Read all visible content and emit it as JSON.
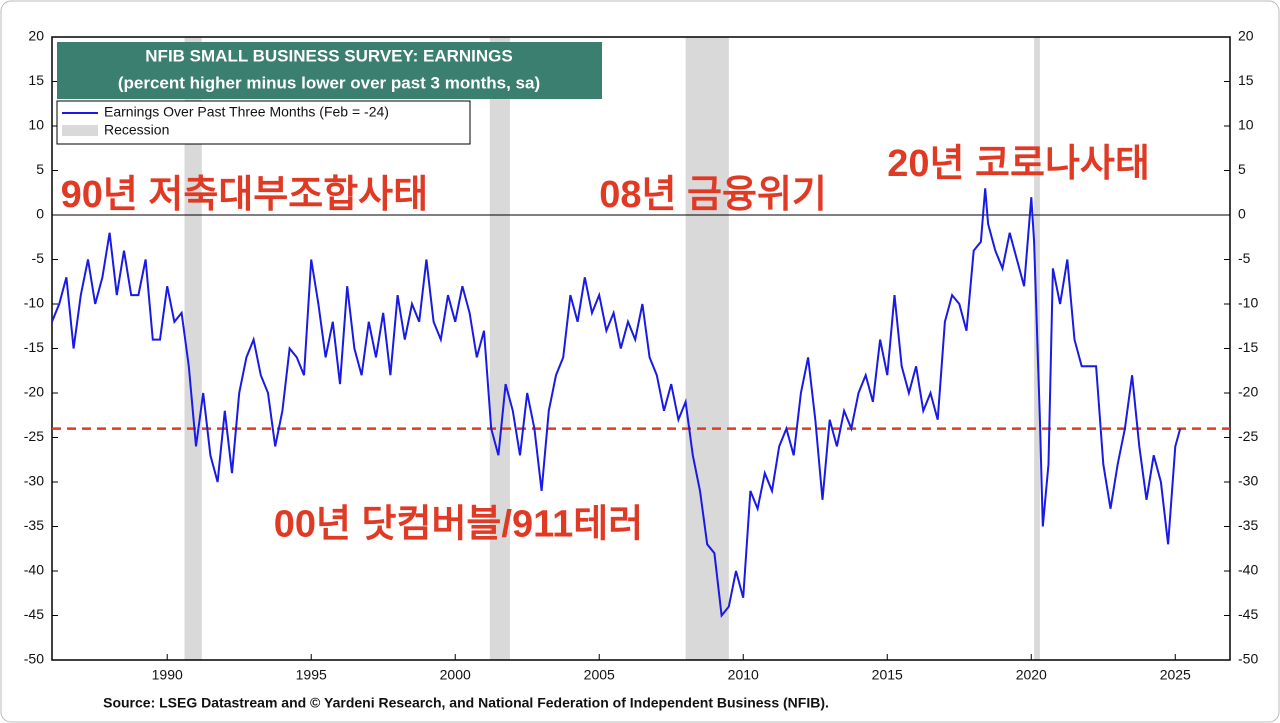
{
  "chart_data": {
    "type": "line",
    "title": "NFIB SMALL BUSINESS SURVEY: EARNINGS",
    "subtitle": "(percent higher minus lower over past 3 months, sa)",
    "source": "Source: LSEG Datastream and © Yardeni Research, and National Federation of Independent Business (NFIB).",
    "x": [
      1986.0,
      1986.25,
      1986.5,
      1986.75,
      1987.0,
      1987.25,
      1987.5,
      1987.75,
      1988.0,
      1988.25,
      1988.5,
      1988.75,
      1989.0,
      1989.25,
      1989.5,
      1989.75,
      1990.0,
      1990.25,
      1990.5,
      1990.75,
      1991.0,
      1991.25,
      1991.5,
      1991.75,
      1992.0,
      1992.25,
      1992.5,
      1992.75,
      1993.0,
      1993.25,
      1993.5,
      1993.75,
      1994.0,
      1994.25,
      1994.5,
      1994.75,
      1995.0,
      1995.25,
      1995.5,
      1995.75,
      1996.0,
      1996.25,
      1996.5,
      1996.75,
      1997.0,
      1997.25,
      1997.5,
      1997.75,
      1998.0,
      1998.25,
      1998.5,
      1998.75,
      1999.0,
      1999.25,
      1999.5,
      1999.75,
      2000.0,
      2000.25,
      2000.5,
      2000.75,
      2001.0,
      2001.25,
      2001.5,
      2001.75,
      2002.0,
      2002.25,
      2002.5,
      2002.75,
      2003.0,
      2003.25,
      2003.5,
      2003.75,
      2004.0,
      2004.25,
      2004.5,
      2004.75,
      2005.0,
      2005.25,
      2005.5,
      2005.75,
      2006.0,
      2006.25,
      2006.5,
      2006.75,
      2007.0,
      2007.25,
      2007.5,
      2007.75,
      2008.0,
      2008.25,
      2008.5,
      2008.75,
      2009.0,
      2009.25,
      2009.5,
      2009.75,
      2010.0,
      2010.25,
      2010.5,
      2010.75,
      2011.0,
      2011.25,
      2011.5,
      2011.75,
      2012.0,
      2012.25,
      2012.5,
      2012.75,
      2013.0,
      2013.25,
      2013.5,
      2013.75,
      2014.0,
      2014.25,
      2014.5,
      2014.75,
      2015.0,
      2015.25,
      2015.5,
      2015.75,
      2016.0,
      2016.25,
      2016.5,
      2016.75,
      2017.0,
      2017.25,
      2017.5,
      2017.75,
      2018.0,
      2018.25,
      2018.4,
      2018.5,
      2018.75,
      2019.0,
      2019.25,
      2019.5,
      2019.75,
      2020.0,
      2020.1,
      2020.3,
      2020.4,
      2020.6,
      2020.75,
      2021.0,
      2021.25,
      2021.5,
      2021.75,
      2022.0,
      2022.25,
      2022.5,
      2022.75,
      2023.0,
      2023.25,
      2023.5,
      2023.75,
      2024.0,
      2024.25,
      2024.5,
      2024.75,
      2025.0,
      2025.17
    ],
    "series": [
      {
        "name": "Earnings Over Past Three Months (Feb = -24)",
        "color": "#1a1ae6",
        "values": [
          -12,
          -10,
          -7,
          -15,
          -9,
          -5,
          -10,
          -7,
          -2,
          -9,
          -4,
          -9,
          -9,
          -5,
          -14,
          -14,
          -8,
          -12,
          -11,
          -17,
          -26,
          -20,
          -27,
          -30,
          -22,
          -29,
          -20,
          -16,
          -14,
          -18,
          -20,
          -26,
          -22,
          -15,
          -16,
          -18,
          -5,
          -10,
          -16,
          -12,
          -19,
          -8,
          -15,
          -18,
          -12,
          -16,
          -11,
          -18,
          -9,
          -14,
          -10,
          -12,
          -5,
          -12,
          -14,
          -9,
          -12,
          -8,
          -11,
          -16,
          -13,
          -24,
          -27,
          -19,
          -22,
          -27,
          -20,
          -24,
          -31,
          -22,
          -18,
          -16,
          -9,
          -12,
          -7,
          -11,
          -9,
          -13,
          -11,
          -15,
          -12,
          -14,
          -10,
          -16,
          -18,
          -22,
          -19,
          -23,
          -21,
          -27,
          -31,
          -37,
          -38,
          -45,
          -44,
          -40,
          -43,
          -31,
          -33,
          -29,
          -31,
          -26,
          -24,
          -27,
          -20,
          -16,
          -23,
          -32,
          -23,
          -26,
          -22,
          -24,
          -20,
          -18,
          -21,
          -14,
          -18,
          -9,
          -17,
          -20,
          -17,
          -22,
          -20,
          -23,
          -12,
          -9,
          -10,
          -13,
          -4,
          -3,
          3,
          -1,
          -4,
          -6,
          -2,
          -5,
          -8,
          2,
          -3,
          -23,
          -35,
          -28,
          -6,
          -10,
          -5,
          -14,
          -17,
          -17,
          -17,
          -28,
          -33,
          -28,
          -24,
          -18,
          -26,
          -32,
          -27,
          -30,
          -37,
          -26,
          -24
        ]
      }
    ],
    "recession_label": "Recession",
    "recession_color": "#d9d9d9",
    "recessions": [
      [
        1990.6,
        1991.2
      ],
      [
        2001.2,
        2001.9
      ],
      [
        2008.0,
        2009.5
      ],
      [
        2020.1,
        2020.3
      ]
    ],
    "reference_line": -24,
    "annotations": [
      {
        "text": "90년 저축대부조합사태",
        "x": 1986.3,
        "y": 2
      },
      {
        "text": "08년 금융위기",
        "x": 2005.0,
        "y": 2
      },
      {
        "text": "20년 코로나사태",
        "x": 2015.0,
        "y": 5.5
      },
      {
        "text": "00년 닷컴버블/911테러",
        "x": 1993.7,
        "y": -35
      }
    ],
    "xlim": [
      1986,
      2026.9
    ],
    "xticks": [
      1990,
      1995,
      2000,
      2005,
      2010,
      2015,
      2020,
      2025
    ],
    "ylim": [
      -50,
      20
    ],
    "yticks": [
      -50,
      -45,
      -40,
      -35,
      -30,
      -25,
      -20,
      -15,
      -10,
      -5,
      0,
      5,
      10,
      15,
      20
    ]
  }
}
